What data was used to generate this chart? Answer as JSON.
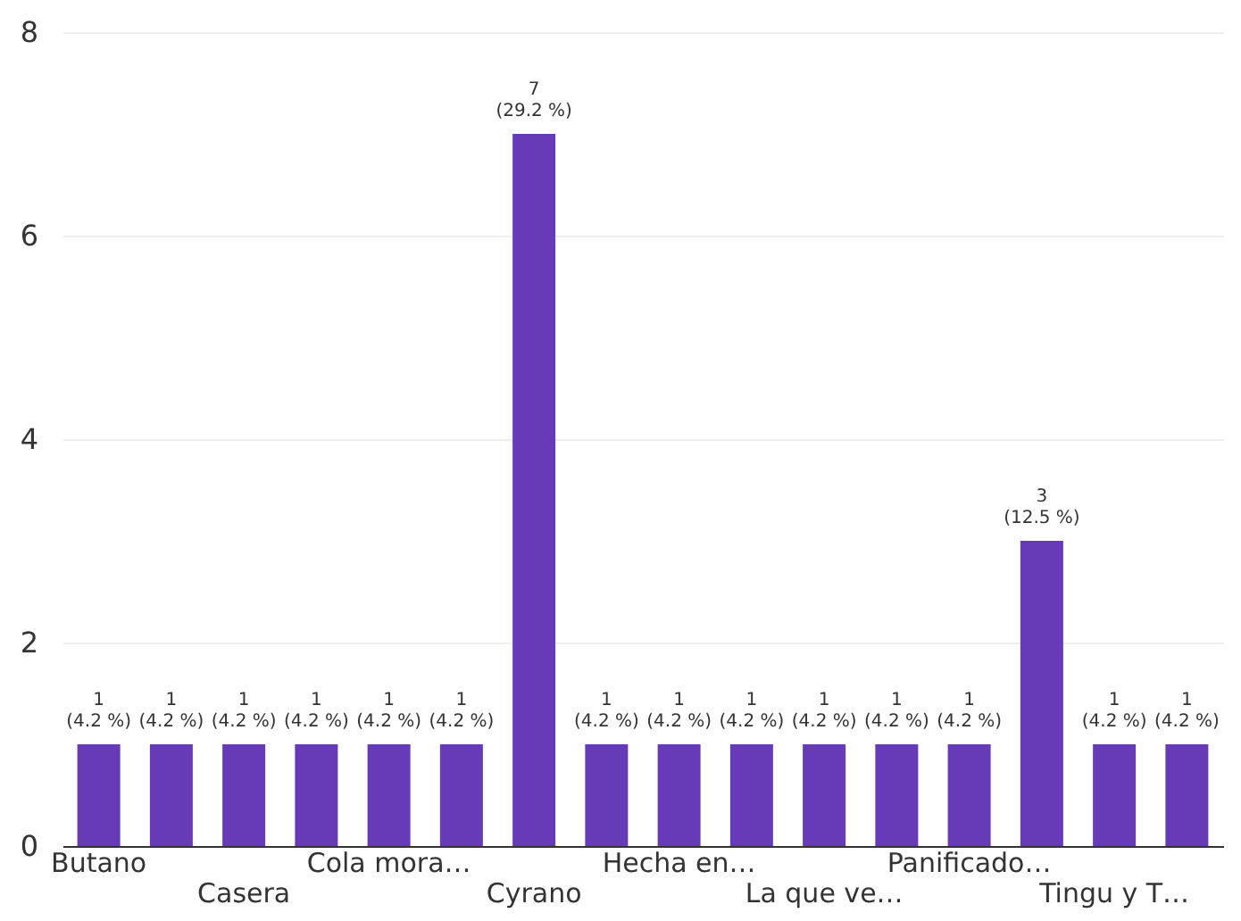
{
  "chart_data": {
    "type": "bar",
    "categories": [
      "Butano",
      null,
      "Casera",
      null,
      "Cola mora…",
      null,
      "Cyrano",
      null,
      "Hecha en…",
      null,
      "La que ve…",
      null,
      "Panificado…",
      null,
      "Tingu y T…",
      null
    ],
    "values": [
      1,
      1,
      1,
      1,
      1,
      1,
      7,
      1,
      1,
      1,
      1,
      1,
      1,
      3,
      1,
      1
    ],
    "value_labels": [
      "1 (4.2 %)",
      "1 (4.2 %)",
      "1 (4.2 %)",
      "1 (4.2 %)",
      "1 (4.2 %)",
      "1 (4.2 %)",
      "7 (29.2 %)",
      "1 (4.2 %)",
      "1 (4.2 %)",
      "1 (4.2 %)",
      "1 (4.2 %)",
      "1 (4.2 %)",
      "1 (4.2 %)",
      "3 (12.5 %)",
      "1 (4.2 %)",
      "1 (4.2 %)"
    ],
    "color": "#673ab7",
    "ylim": [
      0,
      8
    ],
    "yticks": [
      0,
      2,
      4,
      6,
      8
    ],
    "grid": "y",
    "legend": false
  }
}
